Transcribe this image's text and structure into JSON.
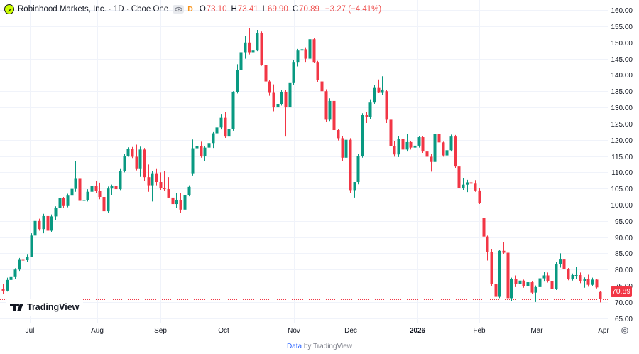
{
  "header": {
    "symbol_title": "Robinhood Markets, Inc. · 1D · Cboe One",
    "flag": "D",
    "open_label": "O",
    "open_value": "73.10",
    "high_label": "H",
    "high_value": "73.41",
    "low_label": "L",
    "low_value": "69.90",
    "close_label": "C",
    "close_value": "70.89",
    "change": "−3.27 (−4.41%)"
  },
  "branding": {
    "logo_text": "TradingView"
  },
  "footer": {
    "link_text": "Data",
    "rest_text": "by TradingView"
  },
  "price_tag": "70.89",
  "colors": {
    "up": "#089981",
    "down": "#f23645",
    "grid": "#f0f3fa",
    "text": "#131722",
    "last_price_line": "#f23645"
  },
  "chart_data": {
    "type": "candlestick",
    "y_axis": {
      "min": 63.4,
      "max": 163.1,
      "ticks": [
        "160.00",
        "155.00",
        "150.00",
        "145.00",
        "140.00",
        "135.00",
        "130.00",
        "125.00",
        "120.00",
        "115.00",
        "110.00",
        "105.00",
        "100.00",
        "95.00",
        "90.00",
        "85.00",
        "80.00",
        "75.00",
        "70.00",
        "65.00"
      ]
    },
    "x_axis": {
      "labels": [
        "Jul",
        "Aug",
        "Sep",
        "Oct",
        "Nov",
        "Dec",
        "2026",
        "Feb",
        "Mar",
        "Apr"
      ]
    },
    "last_price": 70.89,
    "candles": [
      [
        74.0,
        75.5,
        72.6,
        73.5
      ],
      [
        73.5,
        77.5,
        73.2,
        76.8
      ],
      [
        76.8,
        78.2,
        76.0,
        77.9
      ],
      [
        77.9,
        80.4,
        77.0,
        80.0
      ],
      [
        80.0,
        83.6,
        79.6,
        83.0
      ],
      [
        83.0,
        84.8,
        82.2,
        82.9
      ],
      [
        82.9,
        84.6,
        82.3,
        84.0
      ],
      [
        84.0,
        91.2,
        83.8,
        90.5
      ],
      [
        90.5,
        96.0,
        89.8,
        95.0
      ],
      [
        95.0,
        95.7,
        92.0,
        92.5
      ],
      [
        92.5,
        97.2,
        91.2,
        96.5
      ],
      [
        96.5,
        96.6,
        91.8,
        92.0
      ],
      [
        92.0,
        97.0,
        91.5,
        96.4
      ],
      [
        96.4,
        99.5,
        95.4,
        99.0
      ],
      [
        99.0,
        102.7,
        98.5,
        102.0
      ],
      [
        102.0,
        102.4,
        99.0,
        99.6
      ],
      [
        99.6,
        103.4,
        99.2,
        102.8
      ],
      [
        102.8,
        105.4,
        102.0,
        104.9
      ],
      [
        104.9,
        113.5,
        104.0,
        108.0
      ],
      [
        108.0,
        110.7,
        100.5,
        101.2
      ],
      [
        101.2,
        104.0,
        100.2,
        101.5
      ],
      [
        101.5,
        104.8,
        101.0,
        104.0
      ],
      [
        104.0,
        106.3,
        102.6,
        105.8
      ],
      [
        105.8,
        107.4,
        103.7,
        104.2
      ],
      [
        104.2,
        106.8,
        101.7,
        102.4
      ],
      [
        102.4,
        102.4,
        93.4,
        98.0
      ],
      [
        98.0,
        105.6,
        97.5,
        105.0
      ],
      [
        105.0,
        106.2,
        103.0,
        105.8
      ],
      [
        105.8,
        106.0,
        104.0,
        104.8
      ],
      [
        104.8,
        111.0,
        104.5,
        110.5
      ],
      [
        110.5,
        115.6,
        110.0,
        115.0
      ],
      [
        115.0,
        117.7,
        114.8,
        117.2
      ],
      [
        117.2,
        117.8,
        114.4,
        114.8
      ],
      [
        114.8,
        118.5,
        110.6,
        111.0
      ],
      [
        111.0,
        117.9,
        108.6,
        117.0
      ],
      [
        117.0,
        117.5,
        107.4,
        108.5
      ],
      [
        108.5,
        112.4,
        104.0,
        106.0
      ],
      [
        106.0,
        110.5,
        101.0,
        109.5
      ],
      [
        109.5,
        111.0,
        106.0,
        107.0
      ],
      [
        107.0,
        110.0,
        104.6,
        105.2
      ],
      [
        105.2,
        110.4,
        104.3,
        104.8
      ],
      [
        104.8,
        108.5,
        102.0,
        102.2
      ],
      [
        102.2,
        102.5,
        99.6,
        100.2
      ],
      [
        100.2,
        103.5,
        99.0,
        101.5
      ],
      [
        101.5,
        103.7,
        97.4,
        98.5
      ],
      [
        98.5,
        103.6,
        95.7,
        103.0
      ],
      [
        103.0,
        106.0,
        102.6,
        105.5
      ],
      [
        109.5,
        120.1,
        109.0,
        117.4
      ],
      [
        117.4,
        120.4,
        116.2,
        118.0
      ],
      [
        118.0,
        119.4,
        114.5,
        115.0
      ],
      [
        115.0,
        118.1,
        113.5,
        117.6
      ],
      [
        117.6,
        119.5,
        116.0,
        119.0
      ],
      [
        119.0,
        122.6,
        117.5,
        122.0
      ],
      [
        122.0,
        124.6,
        121.4,
        123.8
      ],
      [
        123.8,
        127.8,
        123.2,
        126.8
      ],
      [
        126.8,
        128.5,
        120.6,
        121.0
      ],
      [
        121.0,
        123.9,
        120.2,
        123.4
      ],
      [
        123.4,
        135.0,
        122.8,
        134.8
      ],
      [
        134.8,
        143.3,
        134.3,
        141.6
      ],
      [
        141.6,
        148.3,
        140.5,
        147.0
      ],
      [
        147.0,
        152.1,
        145.0,
        150.0
      ],
      [
        150.0,
        154.4,
        146.3,
        147.0
      ],
      [
        147.0,
        149.7,
        145.5,
        147.5
      ],
      [
        147.5,
        153.9,
        147.3,
        153.0
      ],
      [
        153.0,
        153.4,
        142.8,
        143.0
      ],
      [
        143.0,
        143.2,
        135.0,
        138.0
      ],
      [
        138.0,
        138.4,
        133.6,
        134.5
      ],
      [
        134.5,
        137.1,
        128.8,
        130.0
      ],
      [
        130.0,
        131.5,
        127.5,
        131.0
      ],
      [
        131.0,
        135.3,
        130.6,
        134.8
      ],
      [
        134.8,
        135.3,
        121.0,
        130.0
      ],
      [
        130.0,
        137.9,
        128.5,
        137.5
      ],
      [
        137.5,
        144.5,
        137.0,
        144.0
      ],
      [
        144.0,
        148.0,
        142.6,
        147.5
      ],
      [
        147.5,
        149.4,
        146.8,
        147.9
      ],
      [
        147.9,
        148.5,
        144.0,
        145.0
      ],
      [
        145.0,
        151.9,
        143.7,
        151.0
      ],
      [
        151.0,
        151.4,
        143.6,
        144.0
      ],
      [
        144.0,
        144.3,
        137.7,
        138.5
      ],
      [
        138.0,
        140.6,
        134.3,
        135.0
      ],
      [
        135.0,
        135.6,
        125.6,
        126.2
      ],
      [
        126.2,
        132.8,
        125.8,
        132.0
      ],
      [
        132.0,
        132.5,
        122.6,
        123.0
      ],
      [
        123.0,
        123.4,
        119.8,
        120.5
      ],
      [
        120.5,
        121.2,
        113.4,
        114.5
      ],
      [
        114.5,
        120.6,
        113.8,
        120.0
      ],
      [
        120.0,
        120.5,
        103.6,
        104.5
      ],
      [
        104.5,
        107.0,
        102.2,
        107.0
      ],
      [
        107.0,
        115.6,
        106.3,
        115.0
      ],
      [
        115.0,
        128.2,
        114.5,
        127.6
      ],
      [
        127.6,
        128.6,
        125.2,
        127.0
      ],
      [
        127.0,
        132.5,
        126.4,
        131.5
      ],
      [
        131.5,
        136.9,
        131.0,
        136.0
      ],
      [
        136.0,
        138.6,
        134.4,
        134.5
      ],
      [
        134.5,
        139.6,
        133.8,
        135.5
      ],
      [
        135.0,
        135.4,
        125.2,
        126.2
      ],
      [
        126.2,
        126.4,
        116.6,
        118.0
      ],
      [
        118.0,
        119.6,
        114.8,
        115.5
      ],
      [
        115.5,
        121.2,
        114.7,
        120.2
      ],
      [
        120.2,
        121.3,
        116.7,
        117.0
      ],
      [
        117.0,
        121.7,
        116.4,
        119.3
      ],
      [
        119.3,
        119.5,
        117.0,
        117.6
      ],
      [
        117.6,
        118.8,
        117.0,
        118.2
      ],
      [
        118.2,
        121.2,
        117.6,
        120.8
      ],
      [
        120.8,
        121.1,
        116.0,
        116.4
      ],
      [
        116.4,
        118.6,
        113.2,
        114.8
      ],
      [
        114.8,
        115.7,
        110.2,
        113.2
      ],
      [
        113.2,
        122.4,
        112.7,
        121.8
      ],
      [
        121.8,
        124.5,
        119.0,
        119.2
      ],
      [
        119.2,
        119.4,
        114.8,
        115.2
      ],
      [
        115.2,
        117.4,
        114.0,
        116.8
      ],
      [
        116.8,
        121.6,
        116.4,
        121.0
      ],
      [
        121.0,
        121.5,
        111.4,
        111.8
      ],
      [
        111.8,
        112.1,
        104.7,
        105.2
      ],
      [
        105.2,
        108.2,
        104.6,
        106.2
      ],
      [
        106.2,
        107.7,
        103.9,
        106.9
      ],
      [
        106.9,
        109.9,
        105.7,
        106.5
      ],
      [
        106.5,
        107.6,
        104.0,
        104.4
      ],
      [
        104.4,
        105.2,
        100.2,
        100.5
      ],
      [
        96.0,
        96.4,
        89.7,
        90.2
      ],
      [
        90.2,
        90.5,
        82.8,
        85.5
      ],
      [
        85.5,
        86.4,
        74.8,
        75.5
      ],
      [
        75.5,
        75.8,
        70.8,
        71.6
      ],
      [
        71.6,
        86.2,
        71.2,
        85.8
      ],
      [
        85.8,
        88.5,
        84.8,
        85.2
      ],
      [
        85.2,
        85.6,
        70.9,
        71.2
      ],
      [
        71.2,
        77.5,
        70.4,
        77.0
      ],
      [
        77.0,
        78.2,
        74.6,
        75.6
      ],
      [
        75.6,
        77.2,
        73.8,
        76.6
      ],
      [
        76.6,
        76.9,
        74.4,
        74.8
      ],
      [
        74.8,
        76.6,
        74.2,
        76.1
      ],
      [
        76.1,
        76.5,
        72.4,
        72.9
      ],
      [
        72.9,
        75.1,
        70.0,
        74.6
      ],
      [
        74.6,
        77.7,
        74.0,
        77.3
      ],
      [
        77.3,
        79.4,
        76.3,
        78.2
      ],
      [
        78.2,
        79.1,
        76.0,
        76.4
      ],
      [
        76.4,
        79.2,
        73.5,
        74.0
      ],
      [
        74.0,
        82.4,
        73.7,
        81.6
      ],
      [
        81.6,
        85.0,
        80.6,
        83.1
      ],
      [
        83.1,
        83.4,
        79.7,
        80.2
      ],
      [
        80.2,
        80.5,
        76.7,
        77.1
      ],
      [
        77.1,
        78.8,
        76.6,
        78.3
      ],
      [
        78.3,
        80.9,
        77.0,
        78.3
      ],
      [
        78.3,
        79.1,
        75.8,
        76.4
      ],
      [
        76.4,
        77.6,
        74.4,
        77.1
      ],
      [
        77.1,
        78.4,
        74.7,
        75.3
      ],
      [
        75.3,
        77.5,
        75.0,
        76.9
      ],
      [
        76.9,
        77.2,
        74.2,
        74.5
      ],
      [
        73.1,
        73.4,
        69.9,
        70.9
      ]
    ]
  }
}
